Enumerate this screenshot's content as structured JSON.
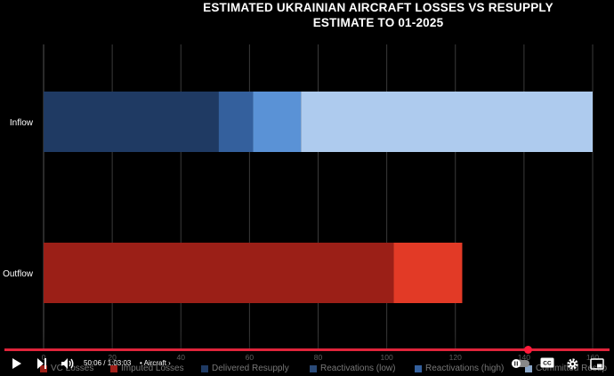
{
  "player": {
    "time": "50:06 / 1:03:03",
    "chapter": "Aircraft",
    "chapter_arrow": "›"
  },
  "chart_data": {
    "type": "bar",
    "orientation": "horizontal",
    "stacked": true,
    "title_line1": "ESTIMATED UKRAINIAN AIRCRAFT LOSSES VS RESUPPLY",
    "title_line2": "ESTIMATE TO 01-2025",
    "categories": [
      "Inflow",
      "Outflow"
    ],
    "xlim": [
      0,
      160
    ],
    "xticks": [
      0,
      20,
      40,
      60,
      80,
      100,
      120,
      140,
      160
    ],
    "grid": true,
    "legend_position": "bottom",
    "series": [
      {
        "name": "VC Losses",
        "color": "#9b1f17",
        "values": [
          0,
          102
        ]
      },
      {
        "name": "Imputed Losses",
        "color": "#e23a26",
        "values": [
          0,
          20
        ]
      },
      {
        "name": "Delivered Resupply",
        "color": "#1f3a63",
        "values": [
          51,
          0
        ]
      },
      {
        "name": "Reactivations (low)",
        "color": "#34609d",
        "values": [
          10,
          0
        ]
      },
      {
        "name": "Reactivations (high)",
        "color": "#5a92d6",
        "values": [
          14,
          0
        ]
      },
      {
        "name": "Committed Resupply",
        "color": "#aecbee",
        "values": [
          85,
          0
        ]
      }
    ],
    "legend_labels": [
      "VC Losses",
      "Imputed Losses",
      "Delivered Resupply",
      "Reactivations (low)",
      "Reactivations (high)",
      "Committed Resup"
    ]
  }
}
